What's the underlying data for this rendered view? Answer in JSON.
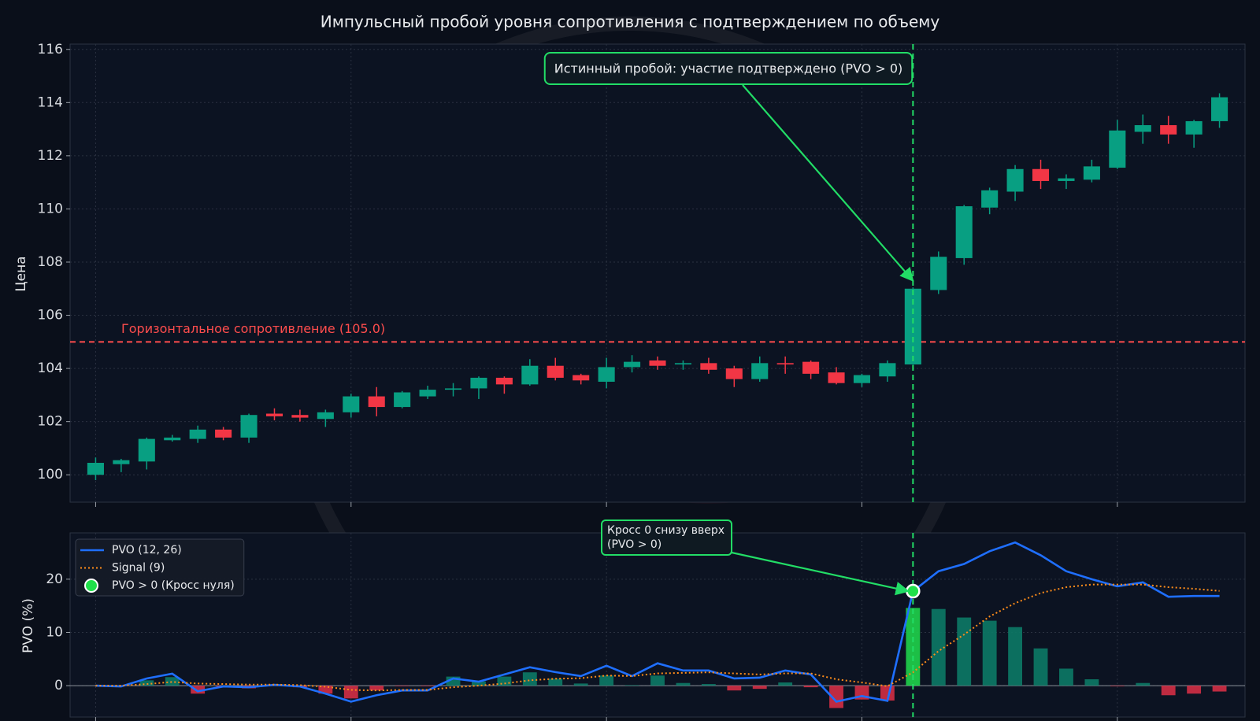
{
  "chart_data": [
    {
      "type": "candlestick",
      "title": "Импульсный пробой уровня сопротивления с подтверждением по объему",
      "ylabel": "Цена",
      "x": [
        0,
        1,
        2,
        3,
        4,
        5,
        6,
        7,
        8,
        9,
        10,
        11,
        12,
        13,
        14,
        15,
        16,
        17,
        18,
        19,
        20,
        21,
        22,
        23,
        24,
        25,
        26,
        27,
        28,
        29,
        30,
        31,
        32,
        33,
        34,
        35,
        36,
        37,
        38,
        39,
        40,
        41,
        42,
        43,
        44
      ],
      "open": [
        100.0,
        100.4,
        100.5,
        101.3,
        101.35,
        101.7,
        101.4,
        102.3,
        102.25,
        102.1,
        102.35,
        102.95,
        102.55,
        102.95,
        103.2,
        103.25,
        103.65,
        103.4,
        104.1,
        103.75,
        103.5,
        104.05,
        104.3,
        104.15,
        104.2,
        104.0,
        103.6,
        104.2,
        104.25,
        103.85,
        103.45,
        103.7,
        104.15,
        106.95,
        108.15,
        110.05,
        110.65,
        111.5,
        111.05,
        111.1,
        111.55,
        112.9,
        113.15,
        112.8,
        113.3
      ],
      "high": [
        100.65,
        100.6,
        101.4,
        101.5,
        101.85,
        101.8,
        102.3,
        102.5,
        102.45,
        102.45,
        103.05,
        103.3,
        103.15,
        103.35,
        103.45,
        103.7,
        103.7,
        104.35,
        104.4,
        103.8,
        104.4,
        104.5,
        104.45,
        104.3,
        104.4,
        104.1,
        104.45,
        104.45,
        104.3,
        104.05,
        103.8,
        104.3,
        107.05,
        108.4,
        110.15,
        110.8,
        111.65,
        111.85,
        111.3,
        111.85,
        113.35,
        113.55,
        113.5,
        113.35,
        114.35
      ],
      "low": [
        99.8,
        100.1,
        100.2,
        101.25,
        101.2,
        101.3,
        101.2,
        102.05,
        102.0,
        101.8,
        102.15,
        102.2,
        102.5,
        102.85,
        102.95,
        102.85,
        103.05,
        103.35,
        103.55,
        103.4,
        103.25,
        103.85,
        103.95,
        103.95,
        103.8,
        103.3,
        103.5,
        103.8,
        103.6,
        103.4,
        103.3,
        103.5,
        104.1,
        106.8,
        107.9,
        109.8,
        110.3,
        110.75,
        110.75,
        111.0,
        111.5,
        112.45,
        112.45,
        112.3,
        113.05
      ],
      "close": [
        100.45,
        100.55,
        101.35,
        101.4,
        101.7,
        101.4,
        102.25,
        102.2,
        102.15,
        102.35,
        102.95,
        102.55,
        103.1,
        103.2,
        103.25,
        103.65,
        103.4,
        104.1,
        103.65,
        103.55,
        104.05,
        104.25,
        104.1,
        104.2,
        103.95,
        103.6,
        104.2,
        104.15,
        103.8,
        103.45,
        103.75,
        104.2,
        107.0,
        108.2,
        110.1,
        110.7,
        111.5,
        111.05,
        111.15,
        111.6,
        112.95,
        113.15,
        112.8,
        113.3,
        114.2
      ],
      "up_color": "#089f82",
      "down_color": "#f23645",
      "xlim": [
        -1,
        45
      ],
      "xticks": [
        0,
        10,
        20,
        30,
        40
      ],
      "ylim": [
        98.97,
        116.2
      ],
      "yticks": [
        100,
        102,
        104,
        106,
        108,
        110,
        112,
        114,
        116
      ],
      "grid": true,
      "hline": {
        "value": 105.0,
        "label": "Горизонтальное сопротивление (105.0)",
        "color": "#ff4d4d"
      },
      "vline": {
        "x": 32,
        "color": "#22dd66"
      },
      "annotation": {
        "text": "Истинный пробой: участие подтверждено (PVO > 0)",
        "x": 32,
        "y": 107.3,
        "color": "#22dd66"
      }
    },
    {
      "type": "combo",
      "ylabel": "PVO (%)",
      "x": [
        0,
        1,
        2,
        3,
        4,
        5,
        6,
        7,
        8,
        9,
        10,
        11,
        12,
        13,
        14,
        15,
        16,
        17,
        18,
        19,
        20,
        21,
        22,
        23,
        24,
        25,
        26,
        27,
        28,
        29,
        30,
        31,
        32,
        33,
        34,
        35,
        36,
        37,
        38,
        39,
        40,
        41,
        42,
        43,
        44
      ],
      "xlim": [
        -1,
        45
      ],
      "xticks": [
        0,
        10,
        20,
        30,
        40
      ],
      "ylim": [
        -5.9,
        28.7
      ],
      "yticks": [
        0,
        10,
        20
      ],
      "grid": true,
      "legend": "upper left",
      "histogram": {
        "values": [
          0,
          0,
          1.0,
          1.6,
          -1.5,
          -0.3,
          -0.5,
          0,
          -0.3,
          -1.5,
          -2.4,
          -0.9,
          -0.1,
          -0.1,
          1.7,
          0.8,
          1.7,
          2.5,
          1.3,
          0.4,
          1.9,
          0.1,
          1.9,
          0.5,
          0.3,
          -0.9,
          -0.6,
          0.6,
          -0.3,
          -4.2,
          -2.6,
          -2.8,
          14.6,
          14.4,
          12.8,
          12.2,
          11.0,
          7.0,
          3.2,
          1.2,
          -0.1,
          0.5,
          -1.8,
          -1.5,
          -1.1
        ],
        "up_color": "#0c7a66",
        "down_color": "#d32f45",
        "highlight_color": "#1fd34a"
      },
      "series": [
        {
          "name": "PVO (12, 26)",
          "kind": "line",
          "color": "#1f6fff",
          "values": [
            0,
            -0.15,
            1.35,
            2.25,
            -1.05,
            -0.15,
            -0.3,
            0.15,
            -0.15,
            -1.5,
            -3.0,
            -1.8,
            -0.9,
            -0.9,
            1.35,
            0.75,
            2.1,
            3.45,
            2.55,
            1.8,
            3.75,
            1.8,
            4.2,
            2.85,
            2.85,
            1.35,
            1.5,
            2.85,
            2.1,
            -3.0,
            -1.95,
            -2.85,
            17.75,
            21.5,
            22.85,
            25.25,
            26.9,
            24.5,
            21.5,
            20.0,
            18.65,
            19.4,
            16.7,
            16.85,
            16.85
          ]
        },
        {
          "name": "Signal (9)",
          "kind": "dotted",
          "color": "#ff8c1a",
          "values": [
            0,
            0,
            0.3,
            0.7,
            0.4,
            0.3,
            0.2,
            0.2,
            0.1,
            -0.2,
            -0.8,
            -0.9,
            -0.8,
            -0.8,
            -0.3,
            0,
            0.4,
            1.0,
            1.3,
            1.4,
            1.9,
            1.8,
            2.3,
            2.4,
            2.5,
            2.3,
            2.1,
            2.3,
            2.3,
            1.2,
            0.6,
            -0.1,
            2.5,
            6.5,
            9.6,
            13.0,
            15.5,
            17.4,
            18.5,
            19.0,
            19.0,
            19.0,
            18.5,
            18.2,
            17.8
          ]
        },
        {
          "name": "PVO > 0 (Кросс нуля)",
          "kind": "point",
          "color": "#1fe04a",
          "x": [
            32
          ],
          "values": [
            17.75
          ]
        }
      ],
      "vline": {
        "x": 32,
        "color": "#22dd66"
      },
      "annotation": {
        "lines": [
          "Кросс 0 снизу вверх",
          "(PVO > 0)"
        ],
        "x": 32,
        "y": 17.75,
        "color": "#22dd66"
      }
    }
  ]
}
